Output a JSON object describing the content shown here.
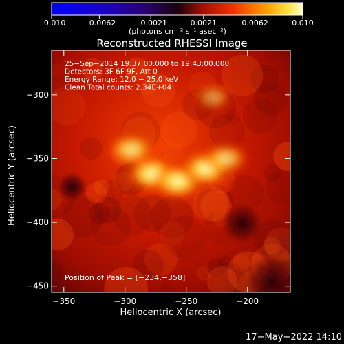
{
  "colorbar": {
    "ticks": [
      "−0.010",
      "−0.0062",
      "−0.0021",
      "0.0021",
      "0.0062",
      "0.010"
    ],
    "tick_values": [
      -0.01,
      -0.0062,
      -0.0021,
      0.0021,
      0.0062,
      0.01
    ],
    "range": [
      -0.01,
      0.01
    ],
    "units_label": "(photons cm⁻² s⁻¹ asec⁻²)"
  },
  "chart_data": {
    "type": "heatmap",
    "title": "Reconstructed RHESSI Image",
    "xlabel": "Heliocentric X (arcsec)",
    "ylabel": "Heliocentric Y (arcsec)",
    "xlim": [
      -360,
      -165
    ],
    "ylim": [
      -455,
      -265
    ],
    "x_ticks": [
      -350,
      -300,
      -250,
      -200
    ],
    "x_tick_labels": [
      "−350",
      "−300",
      "−250",
      "−200"
    ],
    "y_ticks": [
      -300,
      -350,
      -400,
      -450
    ],
    "y_tick_labels": [
      "−300",
      "−350",
      "−400",
      "−450"
    ],
    "sources": [
      {
        "x": -295,
        "y": -343,
        "intensity": 0.85
      },
      {
        "x": -278,
        "y": -362,
        "intensity": 1.0
      },
      {
        "x": -257,
        "y": -368,
        "intensity": 1.0
      },
      {
        "x": -234,
        "y": -358,
        "intensity": 1.0
      },
      {
        "x": -218,
        "y": -350,
        "intensity": 0.8
      },
      {
        "x": -228,
        "y": -302,
        "intensity": 0.55
      }
    ],
    "peak": {
      "x": -234,
      "y": -358
    },
    "annotations": [
      "25−Sep−2014 19:37:00.000 to 19:43:00.000",
      "Detectors: 3F 6F 9F, Att 0",
      "Energy Range: 12.0 − 25.0 keV",
      "Clean     Total counts: 2.34E+04"
    ],
    "peak_label": "Position of Peak = [−234,−358]"
  },
  "timestamp": "17−May−2022 14:10"
}
